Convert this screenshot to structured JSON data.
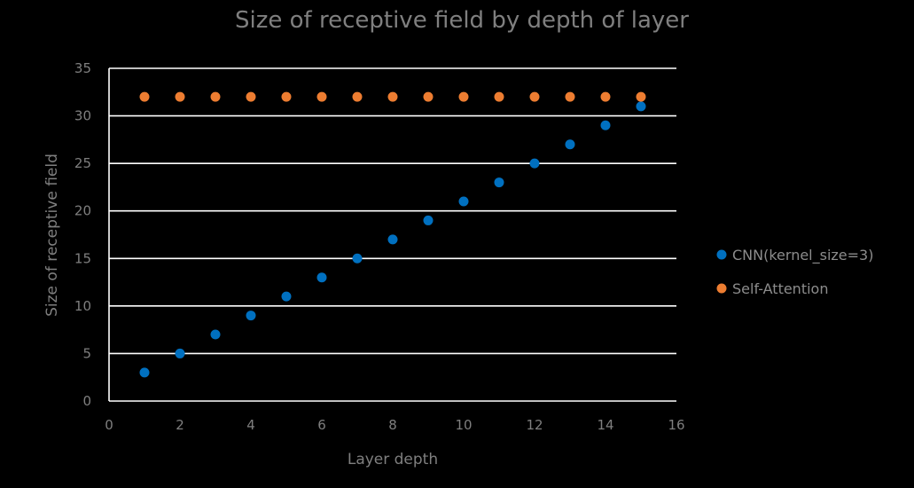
{
  "chart_data": {
    "type": "scatter",
    "title": "Size of receptive field by depth of layer",
    "xlabel": "Layer depth",
    "ylabel": "Size of receptive field",
    "xlim": [
      0,
      16
    ],
    "ylim": [
      0,
      35
    ],
    "xticks": [
      0,
      2,
      4,
      6,
      8,
      10,
      12,
      14,
      16
    ],
    "yticks": [
      0,
      5,
      10,
      15,
      20,
      25,
      30,
      35
    ],
    "grid": "horizontal",
    "legend_position": "right",
    "series": [
      {
        "name": "CNN(kernel_size=3)",
        "color": "#0070c0",
        "x": [
          1,
          2,
          3,
          4,
          5,
          6,
          7,
          8,
          9,
          10,
          11,
          12,
          13,
          14,
          15
        ],
        "y": [
          3,
          5,
          7,
          9,
          11,
          13,
          15,
          17,
          19,
          21,
          23,
          25,
          27,
          29,
          31
        ]
      },
      {
        "name": "Self-Attention",
        "color": "#ed7d31",
        "x": [
          1,
          2,
          3,
          4,
          5,
          6,
          7,
          8,
          9,
          10,
          11,
          12,
          13,
          14,
          15
        ],
        "y": [
          32,
          32,
          32,
          32,
          32,
          32,
          32,
          32,
          32,
          32,
          32,
          32,
          32,
          32,
          32
        ]
      }
    ]
  }
}
